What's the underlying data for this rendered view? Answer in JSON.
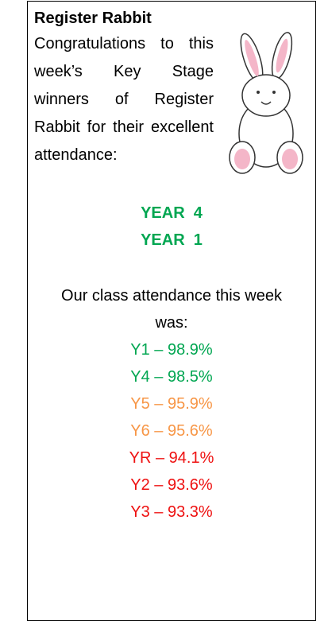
{
  "title": "Register Rabbit",
  "intro": "Congratulations to this week’s Key Stage winners of Register Rabbit for their excellent attendance:",
  "winners": {
    "color": "#00a651",
    "items": [
      "YEAR  4",
      "YEAR  1"
    ]
  },
  "attendance": {
    "heading": "Our class attendance this week was:",
    "rows": [
      {
        "text": "Y1 – 98.9%",
        "color": "#00a651"
      },
      {
        "text": "Y4 – 98.5%",
        "color": "#00a651"
      },
      {
        "text": "Y5 – 95.9%",
        "color": "#f79646"
      },
      {
        "text": "Y6 – 95.6%",
        "color": "#f79646"
      },
      {
        "text": "YR – 94.1%",
        "color": "#ee1111"
      },
      {
        "text": "Y2 – 93.6%",
        "color": "#ee1111"
      },
      {
        "text": "Y3 – 93.3%",
        "color": "#ee1111"
      }
    ]
  }
}
